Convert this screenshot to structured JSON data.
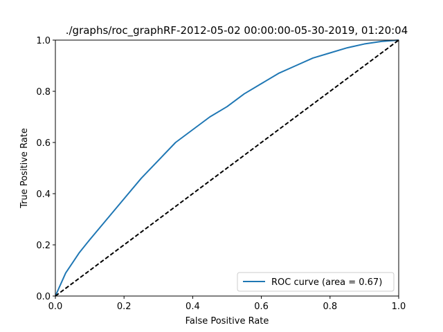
{
  "chart_data": {
    "type": "line",
    "title": "./graphs/roc_graphRF-2012-05-02 00:00:00-05-30-2019, 01:20:04",
    "xlabel": "False Positive Rate",
    "ylabel": "True Positive Rate",
    "xlim": [
      0.0,
      1.0
    ],
    "ylim": [
      0.0,
      1.0
    ],
    "xticks": [
      "0.0",
      "0.2",
      "0.4",
      "0.6",
      "0.8",
      "1.0"
    ],
    "yticks": [
      "0.0",
      "0.2",
      "0.4",
      "0.6",
      "0.8",
      "1.0"
    ],
    "grid": false,
    "legend_position": "lower-right",
    "series": [
      {
        "name": "ROC curve (area = 0.67)",
        "color": "#1f77b4",
        "style": "solid",
        "x": [
          0.0,
          0.01,
          0.02,
          0.03,
          0.05,
          0.07,
          0.1,
          0.15,
          0.2,
          0.25,
          0.3,
          0.35,
          0.4,
          0.45,
          0.5,
          0.55,
          0.6,
          0.65,
          0.7,
          0.75,
          0.8,
          0.85,
          0.9,
          0.95,
          1.0
        ],
        "y": [
          0.0,
          0.03,
          0.06,
          0.09,
          0.13,
          0.17,
          0.22,
          0.3,
          0.38,
          0.46,
          0.53,
          0.6,
          0.65,
          0.7,
          0.74,
          0.79,
          0.83,
          0.87,
          0.9,
          0.93,
          0.95,
          0.97,
          0.985,
          0.995,
          1.0
        ]
      },
      {
        "name": "",
        "color": "#000000",
        "style": "dashed",
        "x": [
          0.0,
          1.0
        ],
        "y": [
          0.0,
          1.0
        ]
      }
    ]
  }
}
